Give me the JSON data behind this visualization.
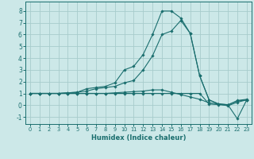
{
  "xlabel": "Humidex (Indice chaleur)",
  "xlim": [
    -0.5,
    23.5
  ],
  "ylim": [
    -1.6,
    8.8
  ],
  "xticks": [
    0,
    1,
    2,
    3,
    4,
    5,
    6,
    7,
    8,
    9,
    10,
    11,
    12,
    13,
    14,
    15,
    16,
    17,
    18,
    19,
    20,
    21,
    22,
    23
  ],
  "yticks": [
    -1,
    0,
    1,
    2,
    3,
    4,
    5,
    6,
    7,
    8
  ],
  "bg_color": "#cce8e8",
  "grid_color": "#a8cccc",
  "line_color": "#1a6e6e",
  "lines": [
    [
      1.0,
      1.0,
      1.0,
      1.0,
      1.0,
      1.0,
      1.0,
      1.0,
      1.0,
      1.0,
      1.0,
      1.0,
      1.0,
      1.0,
      1.0,
      1.0,
      1.0,
      1.0,
      1.0,
      0.1,
      0.05,
      0.0,
      0.4,
      0.5
    ],
    [
      1.0,
      1.0,
      1.0,
      1.0,
      1.0,
      1.0,
      1.0,
      1.0,
      1.0,
      1.05,
      1.1,
      1.15,
      1.2,
      1.3,
      1.3,
      1.1,
      0.9,
      0.7,
      0.5,
      0.2,
      0.1,
      0.05,
      0.35,
      0.45
    ],
    [
      1.0,
      1.0,
      1.0,
      1.0,
      1.05,
      1.1,
      1.2,
      1.4,
      1.5,
      1.6,
      1.9,
      2.1,
      3.0,
      4.2,
      6.0,
      6.3,
      7.2,
      6.1,
      2.5,
      0.45,
      0.08,
      -0.05,
      0.25,
      0.45
    ],
    [
      1.0,
      1.0,
      1.0,
      1.0,
      1.05,
      1.1,
      1.4,
      1.5,
      1.6,
      1.9,
      3.0,
      3.3,
      4.3,
      6.0,
      8.0,
      8.0,
      7.4,
      6.1,
      2.5,
      0.45,
      0.12,
      0.03,
      -1.15,
      0.45
    ]
  ]
}
